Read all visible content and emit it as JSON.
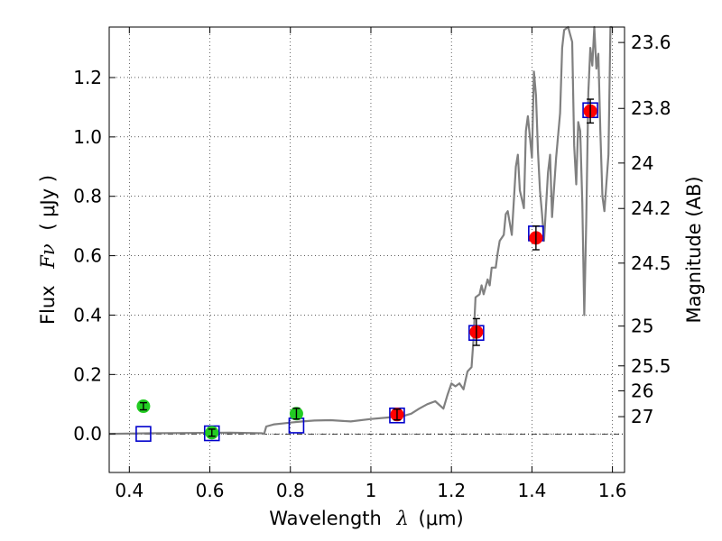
{
  "chart_data": {
    "type": "scatter",
    "title": "",
    "xlabel": "Wavelength",
    "xlabel_symbol": "λ",
    "xlabel_unit": "(μm)",
    "ylabel": "Flux",
    "ylabel_symbol": "Fν",
    "ylabel_unit": "( μJy )",
    "y2label": "Magnitude (AB)",
    "xlim": [
      0.35,
      1.63
    ],
    "ylim": [
      -0.13,
      1.37
    ],
    "grid": true,
    "x_ticks": [
      {
        "v": 0.4,
        "label": "0.4"
      },
      {
        "v": 0.6,
        "label": "0.6"
      },
      {
        "v": 0.8,
        "label": "0.8"
      },
      {
        "v": 1.0,
        "label": "1"
      },
      {
        "v": 1.2,
        "label": "1.2"
      },
      {
        "v": 1.4,
        "label": "1.4"
      },
      {
        "v": 1.6,
        "label": "1.6"
      }
    ],
    "y_ticks": [
      {
        "v": 0.0,
        "label": "0.0"
      },
      {
        "v": 0.2,
        "label": "0.2"
      },
      {
        "v": 0.4,
        "label": "0.4"
      },
      {
        "v": 0.6,
        "label": "0.6"
      },
      {
        "v": 0.8,
        "label": "0.8"
      },
      {
        "v": 1.0,
        "label": "1.0"
      },
      {
        "v": 1.2,
        "label": "1.2"
      }
    ],
    "y2_ticks": [
      {
        "flux": 1.318,
        "label": "23.6"
      },
      {
        "flux": 1.096,
        "label": "23.8"
      },
      {
        "flux": 0.912,
        "label": "24"
      },
      {
        "flux": 0.759,
        "label": "24.2"
      },
      {
        "flux": 0.575,
        "label": "24.5"
      },
      {
        "flux": 0.363,
        "label": "25"
      },
      {
        "flux": 0.229,
        "label": "25.5"
      },
      {
        "flux": 0.145,
        "label": "26"
      },
      {
        "flux": 0.058,
        "label": "27"
      }
    ],
    "series": [
      {
        "kind": "line",
        "color": "#808080",
        "points": [
          [
            0.35,
            0.0
          ],
          [
            0.45,
            0.002
          ],
          [
            0.55,
            0.003
          ],
          [
            0.65,
            0.004
          ],
          [
            0.73,
            0.002
          ],
          [
            0.735,
            0.0
          ],
          [
            0.74,
            0.025
          ],
          [
            0.76,
            0.032
          ],
          [
            0.78,
            0.035
          ],
          [
            0.8,
            0.038
          ],
          [
            0.83,
            0.042
          ],
          [
            0.86,
            0.045
          ],
          [
            0.9,
            0.046
          ],
          [
            0.95,
            0.042
          ],
          [
            1.0,
            0.05
          ],
          [
            1.04,
            0.055
          ],
          [
            1.08,
            0.06
          ],
          [
            1.1,
            0.068
          ],
          [
            1.12,
            0.085
          ],
          [
            1.14,
            0.1
          ],
          [
            1.16,
            0.11
          ],
          [
            1.18,
            0.085
          ],
          [
            1.19,
            0.13
          ],
          [
            1.2,
            0.17
          ],
          [
            1.21,
            0.16
          ],
          [
            1.22,
            0.17
          ],
          [
            1.23,
            0.15
          ],
          [
            1.24,
            0.21
          ],
          [
            1.25,
            0.225
          ],
          [
            1.255,
            0.32
          ],
          [
            1.26,
            0.46
          ],
          [
            1.27,
            0.47
          ],
          [
            1.275,
            0.5
          ],
          [
            1.28,
            0.47
          ],
          [
            1.29,
            0.52
          ],
          [
            1.295,
            0.5
          ],
          [
            1.3,
            0.56
          ],
          [
            1.31,
            0.56
          ],
          [
            1.315,
            0.61
          ],
          [
            1.32,
            0.65
          ],
          [
            1.33,
            0.67
          ],
          [
            1.335,
            0.74
          ],
          [
            1.34,
            0.75
          ],
          [
            1.35,
            0.67
          ],
          [
            1.36,
            0.9
          ],
          [
            1.365,
            0.94
          ],
          [
            1.37,
            0.82
          ],
          [
            1.38,
            0.76
          ],
          [
            1.385,
            1.02
          ],
          [
            1.39,
            1.07
          ],
          [
            1.4,
            0.93
          ],
          [
            1.405,
            1.22
          ],
          [
            1.41,
            1.14
          ],
          [
            1.415,
            0.95
          ],
          [
            1.42,
            0.82
          ],
          [
            1.425,
            0.74
          ],
          [
            1.43,
            0.65
          ],
          [
            1.44,
            0.88
          ],
          [
            1.445,
            0.94
          ],
          [
            1.45,
            0.73
          ],
          [
            1.46,
            0.93
          ],
          [
            1.47,
            1.08
          ],
          [
            1.475,
            1.3
          ],
          [
            1.48,
            1.36
          ],
          [
            1.49,
            1.37
          ],
          [
            1.5,
            1.32
          ],
          [
            1.505,
            0.97
          ],
          [
            1.51,
            0.84
          ],
          [
            1.515,
            1.05
          ],
          [
            1.52,
            1.02
          ],
          [
            1.525,
            0.78
          ],
          [
            1.53,
            0.4
          ],
          [
            1.535,
            0.72
          ],
          [
            1.54,
            1.15
          ],
          [
            1.545,
            1.3
          ],
          [
            1.55,
            1.24
          ],
          [
            1.555,
            1.37
          ],
          [
            1.56,
            1.23
          ],
          [
            1.565,
            1.28
          ],
          [
            1.57,
            1.02
          ],
          [
            1.575,
            0.8
          ],
          [
            1.58,
            0.75
          ],
          [
            1.59,
            0.94
          ],
          [
            1.595,
            1.37
          ],
          [
            1.6,
            1.37
          ]
        ]
      },
      {
        "kind": "squares",
        "color": "#0000cc",
        "points": [
          [
            0.435,
            0.0
          ],
          [
            0.605,
            0.002
          ],
          [
            0.815,
            0.028
          ],
          [
            1.065,
            0.062
          ],
          [
            1.262,
            0.34
          ],
          [
            1.41,
            0.675
          ],
          [
            1.545,
            1.09
          ]
        ]
      },
      {
        "kind": "points",
        "color": "#22cc22",
        "points": [
          [
            0.435,
            0.093
          ],
          [
            0.605,
            0.004
          ],
          [
            0.815,
            0.068
          ]
        ],
        "errors": [
          0.012,
          0.012,
          0.018
        ]
      },
      {
        "kind": "points",
        "color": "#ff0000",
        "points": [
          [
            1.065,
            0.065
          ],
          [
            1.262,
            0.343
          ],
          [
            1.41,
            0.66
          ],
          [
            1.545,
            1.087
          ]
        ],
        "errors": [
          0.018,
          0.045,
          0.04,
          0.04
        ]
      }
    ]
  }
}
